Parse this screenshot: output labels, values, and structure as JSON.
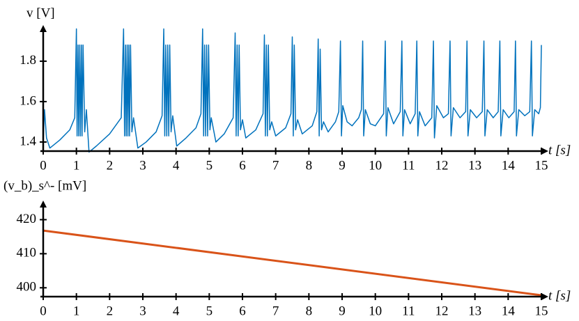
{
  "chart_data": [
    {
      "type": "line",
      "ylabel": "v [V]",
      "xlabel": "t [s]",
      "x": [
        0,
        0.04,
        0.1,
        0.2,
        0.5,
        0.8,
        0.95,
        1.0,
        1.02,
        1.05,
        1.07,
        1.1,
        1.12,
        1.15,
        1.17,
        1.2,
        1.25,
        1.3,
        1.38,
        1.6,
        2.0,
        2.35,
        2.42,
        2.45,
        2.48,
        2.5,
        2.53,
        2.55,
        2.58,
        2.6,
        2.63,
        2.67,
        2.72,
        2.85,
        3.1,
        3.4,
        3.58,
        3.63,
        3.66,
        3.69,
        3.72,
        3.75,
        3.78,
        3.81,
        3.85,
        3.9,
        4.02,
        4.3,
        4.6,
        4.75,
        4.8,
        4.83,
        4.86,
        4.89,
        4.92,
        4.95,
        4.98,
        5.02,
        5.06,
        5.2,
        5.45,
        5.72,
        5.78,
        5.81,
        5.84,
        5.87,
        5.9,
        5.94,
        6.0,
        6.1,
        6.4,
        6.62,
        6.66,
        6.69,
        6.72,
        6.75,
        6.78,
        6.82,
        6.88,
        7.0,
        7.3,
        7.46,
        7.5,
        7.53,
        7.56,
        7.6,
        7.66,
        7.8,
        8.1,
        8.24,
        8.28,
        8.31,
        8.34,
        8.38,
        8.44,
        8.58,
        8.8,
        8.9,
        8.95,
        8.98,
        9.02,
        9.15,
        9.3,
        9.5,
        9.58,
        9.62,
        9.65,
        9.7,
        9.85,
        10.0,
        10.25,
        10.3,
        10.33,
        10.38,
        10.55,
        10.75,
        10.8,
        10.83,
        10.88,
        11.05,
        11.2,
        11.25,
        11.28,
        11.33,
        11.5,
        11.7,
        11.75,
        11.78,
        11.85,
        12.05,
        12.2,
        12.25,
        12.28,
        12.35,
        12.55,
        12.72,
        12.76,
        12.79,
        12.86,
        13.05,
        13.22,
        13.27,
        13.3,
        13.37,
        13.55,
        13.7,
        13.75,
        13.78,
        13.85,
        14.02,
        14.18,
        14.22,
        14.25,
        14.32,
        14.5,
        14.65,
        14.7,
        14.73,
        14.8,
        14.92,
        14.97,
        15.0
      ],
      "series": [
        {
          "color": "#0072bd",
          "values": [
            1.4,
            1.56,
            1.42,
            1.37,
            1.41,
            1.46,
            1.52,
            1.96,
            1.43,
            1.88,
            1.43,
            1.88,
            1.43,
            1.88,
            1.43,
            1.88,
            1.45,
            1.56,
            1.35,
            1.38,
            1.44,
            1.52,
            1.96,
            1.43,
            1.88,
            1.43,
            1.88,
            1.43,
            1.88,
            1.43,
            1.88,
            1.45,
            1.52,
            1.37,
            1.4,
            1.45,
            1.53,
            1.96,
            1.43,
            1.88,
            1.43,
            1.88,
            1.43,
            1.88,
            1.45,
            1.53,
            1.38,
            1.42,
            1.47,
            1.54,
            1.96,
            1.43,
            1.88,
            1.43,
            1.88,
            1.43,
            1.88,
            1.46,
            1.52,
            1.4,
            1.44,
            1.52,
            1.94,
            1.43,
            1.88,
            1.43,
            1.88,
            1.46,
            1.51,
            1.42,
            1.46,
            1.54,
            1.93,
            1.43,
            1.88,
            1.43,
            1.88,
            1.46,
            1.5,
            1.43,
            1.47,
            1.54,
            1.92,
            1.43,
            1.88,
            1.46,
            1.51,
            1.44,
            1.48,
            1.55,
            1.91,
            1.43,
            1.86,
            1.46,
            1.5,
            1.45,
            1.5,
            1.55,
            1.9,
            1.43,
            1.58,
            1.5,
            1.48,
            1.52,
            1.56,
            1.9,
            1.43,
            1.56,
            1.49,
            1.48,
            1.54,
            1.9,
            1.43,
            1.57,
            1.49,
            1.55,
            1.9,
            1.43,
            1.56,
            1.49,
            1.54,
            1.9,
            1.43,
            1.55,
            1.48,
            1.52,
            1.9,
            1.42,
            1.58,
            1.52,
            1.54,
            1.9,
            1.43,
            1.57,
            1.52,
            1.55,
            1.9,
            1.43,
            1.56,
            1.52,
            1.55,
            1.9,
            1.43,
            1.56,
            1.52,
            1.55,
            1.9,
            1.43,
            1.56,
            1.52,
            1.55,
            1.9,
            1.43,
            1.56,
            1.53,
            1.55,
            1.9,
            1.43,
            1.56,
            1.54,
            1.57,
            1.88
          ]
        }
      ],
      "xlim": [
        0,
        15
      ],
      "ylim": [
        1.355,
        1.965
      ],
      "xticks": [
        0,
        1,
        2,
        3,
        4,
        5,
        6,
        7,
        8,
        9,
        10,
        11,
        12,
        13,
        14,
        15
      ],
      "yticks": [
        1.4,
        1.6,
        1.8
      ]
    },
    {
      "type": "line",
      "ylabel": "(v_b)_s^- [mV]",
      "xlabel": "t [s]",
      "x": [
        0,
        15
      ],
      "series": [
        {
          "color": "#d95319",
          "values": [
            416.8,
            397.8
          ]
        }
      ],
      "xlim": [
        0,
        15
      ],
      "ylim": [
        397.4,
        424.8
      ],
      "xticks": [
        0,
        1,
        2,
        3,
        4,
        5,
        6,
        7,
        8,
        9,
        10,
        11,
        12,
        13,
        14,
        15
      ],
      "yticks": [
        400,
        410,
        420
      ]
    }
  ]
}
